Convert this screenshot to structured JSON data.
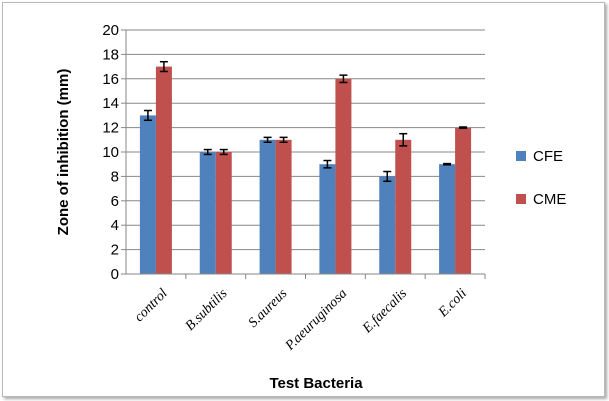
{
  "chart_data": {
    "type": "bar",
    "title": "",
    "xlabel": "Test Bacteria",
    "ylabel": "Zone of inhibition (mm)",
    "ylim": [
      0,
      20
    ],
    "yticks": [
      "0",
      "2",
      "4",
      "6",
      "8",
      "10",
      "12",
      "14",
      "16",
      "18",
      "20"
    ],
    "grid": true,
    "legend_position": "right",
    "categories": [
      "control",
      "B.subtilis",
      "S.aureus",
      "P.aeuruginosa",
      "E.faecalis",
      "E.coli"
    ],
    "series": [
      {
        "name": "CFE",
        "color": "#4f81bd",
        "values": [
          13,
          10,
          11,
          9,
          8,
          9
        ],
        "errors": [
          0.4,
          0.2,
          0.2,
          0.3,
          0.4,
          0.05
        ]
      },
      {
        "name": "CME",
        "color": "#c0504d",
        "values": [
          17,
          10,
          11,
          16,
          11,
          12
        ],
        "errors": [
          0.4,
          0.2,
          0.2,
          0.3,
          0.5,
          0.05
        ]
      }
    ]
  }
}
